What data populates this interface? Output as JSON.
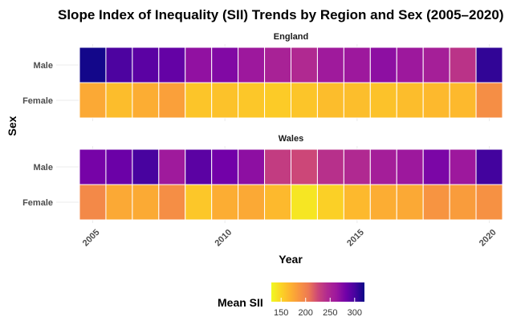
{
  "chart_data": {
    "type": "heatmap",
    "title": "Slope Index of Inequality (SII) Trends by Region and Sex (2005–2020)",
    "xlabel": "Year",
    "ylabel": "Sex",
    "x": [
      2005,
      2006,
      2007,
      2008,
      2009,
      2010,
      2011,
      2012,
      2013,
      2014,
      2015,
      2016,
      2017,
      2018,
      2019,
      2020
    ],
    "x_ticks": [
      2005,
      2010,
      2015,
      2020
    ],
    "x_range": [
      2004.5,
      2020.5
    ],
    "rows": [
      "Male",
      "Female"
    ],
    "facets": [
      {
        "region": "England",
        "values": {
          "Male": [
            318,
            298,
            292,
            288,
            268,
            275,
            262,
            252,
            245,
            260,
            262,
            270,
            262,
            255,
            238,
            308
          ],
          "Female": [
            175,
            163,
            172,
            180,
            158,
            160,
            157,
            155,
            158,
            163,
            162,
            160,
            163,
            165,
            165,
            192
          ]
        }
      },
      {
        "region": "Wales",
        "values": {
          "Male": [
            280,
            285,
            300,
            260,
            292,
            282,
            270,
            232,
            225,
            240,
            245,
            256,
            262,
            278,
            262,
            302
          ],
          "Female": [
            195,
            175,
            174,
            192,
            157,
            172,
            175,
            165,
            140,
            152,
            165,
            172,
            175,
            188,
            183,
            190
          ]
        }
      }
    ],
    "legend": {
      "title": "Mean SII",
      "position": "bottom",
      "ticks": [
        150,
        200,
        250,
        300
      ],
      "range": [
        130,
        320
      ]
    }
  }
}
